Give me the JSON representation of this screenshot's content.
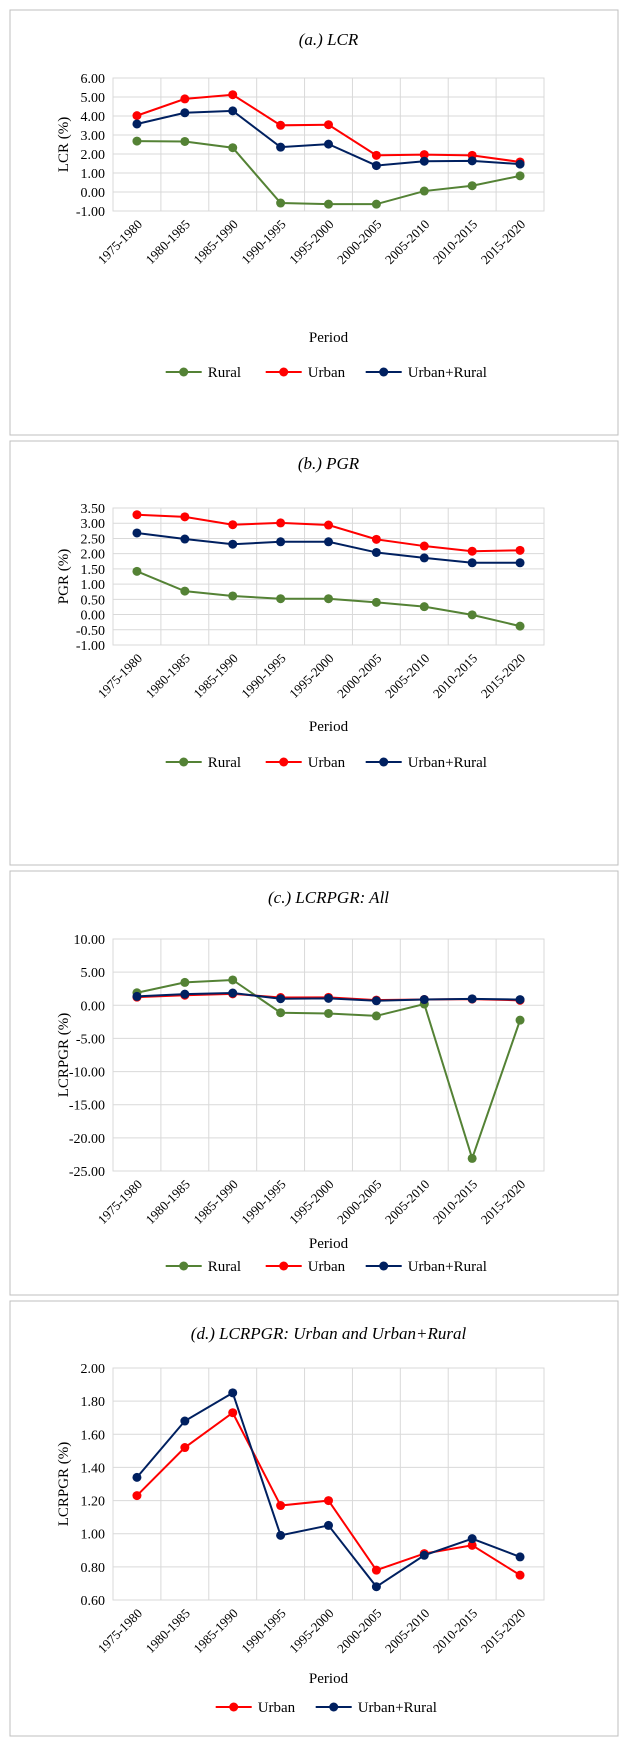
{
  "chart_data": [
    {
      "type": "line",
      "title": "(a.) LCR",
      "xlabel": "Period",
      "ylabel": "LCR (%)",
      "ylim": [
        -1,
        6
      ],
      "ystep": 1,
      "grid": true,
      "legend_position": "bottom",
      "categories": [
        "1975-1980",
        "1980-1985",
        "1985-1990",
        "1990-1995",
        "1995-2000",
        "2000-2005",
        "2005-2010",
        "2010-2015",
        "2015-2020"
      ],
      "series": [
        {
          "name": "Rural",
          "color": "#548235",
          "values": [
            2.68,
            2.66,
            2.33,
            -0.58,
            -0.64,
            -0.64,
            0.05,
            0.33,
            0.85
          ]
        },
        {
          "name": "Urban",
          "color": "#ff0000",
          "values": [
            4.02,
            4.9,
            5.12,
            3.51,
            3.54,
            1.93,
            1.97,
            1.93,
            1.58
          ]
        },
        {
          "name": "Urban+Rural",
          "color": "#002060",
          "values": [
            3.58,
            4.17,
            4.27,
            2.36,
            2.52,
            1.39,
            1.62,
            1.64,
            1.47
          ]
        }
      ]
    },
    {
      "type": "line",
      "title": "(b.) PGR",
      "xlabel": "Period",
      "ylabel": "PGR (%)",
      "ylim": [
        -1,
        3.5
      ],
      "ystep": 0.5,
      "grid": true,
      "legend_position": "bottom",
      "categories": [
        "1975-1980",
        "1980-1985",
        "1985-1990",
        "1990-1995",
        "1995-2000",
        "2000-2005",
        "2005-2010",
        "2010-2015",
        "2015-2020"
      ],
      "series": [
        {
          "name": "Rural",
          "color": "#548235",
          "values": [
            1.42,
            0.77,
            0.61,
            0.52,
            0.52,
            0.4,
            0.26,
            -0.01,
            -0.38
          ]
        },
        {
          "name": "Urban",
          "color": "#ff0000",
          "values": [
            3.28,
            3.21,
            2.95,
            3.01,
            2.94,
            2.47,
            2.25,
            2.08,
            2.11
          ]
        },
        {
          "name": "Urban+Rural",
          "color": "#002060",
          "values": [
            2.68,
            2.48,
            2.31,
            2.39,
            2.39,
            2.04,
            1.86,
            1.7,
            1.7
          ]
        }
      ]
    },
    {
      "type": "line",
      "title": "(c.) LCRPGR: All",
      "xlabel": "Period",
      "ylabel": "LCRPGR (%)",
      "ylim": [
        -25,
        10
      ],
      "ystep": 5,
      "grid": true,
      "legend_position": "bottom",
      "categories": [
        "1975-1980",
        "1980-1985",
        "1985-1990",
        "1990-1995",
        "1995-2000",
        "2000-2005",
        "2005-2010",
        "2010-2015",
        "2015-2020"
      ],
      "series": [
        {
          "name": "Rural",
          "color": "#548235",
          "values": [
            1.89,
            3.45,
            3.82,
            -1.12,
            -1.23,
            -1.6,
            0.19,
            -23.1,
            -2.24
          ]
        },
        {
          "name": "Urban",
          "color": "#ff0000",
          "values": [
            1.23,
            1.52,
            1.73,
            1.17,
            1.2,
            0.78,
            0.88,
            0.93,
            0.75
          ]
        },
        {
          "name": "Urban+Rural",
          "color": "#002060",
          "values": [
            1.34,
            1.68,
            1.85,
            0.99,
            1.05,
            0.68,
            0.87,
            0.97,
            0.86
          ]
        }
      ]
    },
    {
      "type": "line",
      "title": "(d.) LCRPGR: Urban and Urban+Rural",
      "xlabel": "Period",
      "ylabel": "LCRPGR (%)",
      "ylim": [
        0.6,
        2.0
      ],
      "ystep": 0.2,
      "grid": true,
      "legend_position": "bottom",
      "categories": [
        "1975-1980",
        "1980-1985",
        "1985-1990",
        "1990-1995",
        "1995-2000",
        "2000-2005",
        "2005-2010",
        "2010-2015",
        "2015-2020"
      ],
      "series": [
        {
          "name": "Urban",
          "color": "#ff0000",
          "values": [
            1.23,
            1.52,
            1.73,
            1.17,
            1.2,
            0.78,
            0.88,
            0.93,
            0.75
          ]
        },
        {
          "name": "Urban+Rural",
          "color": "#002060",
          "values": [
            1.34,
            1.68,
            1.85,
            0.99,
            1.05,
            0.68,
            0.87,
            0.97,
            0.86
          ]
        }
      ]
    }
  ]
}
